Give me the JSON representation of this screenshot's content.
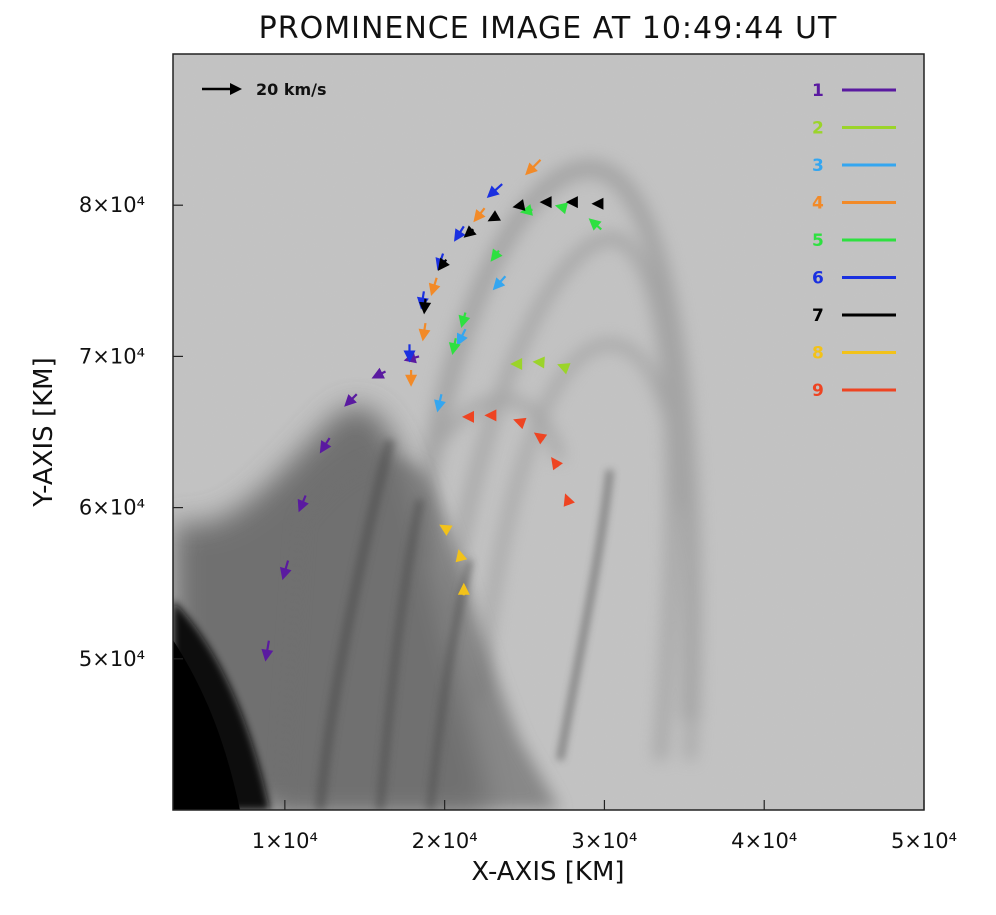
{
  "chart_data": {
    "type": "scatter",
    "title": "PROMINENCE IMAGE AT 10:49:44 UT",
    "xlabel": "X-AXIS [KM]",
    "ylabel": "Y-AXIS [KM]",
    "xlim": [
      3000,
      50000
    ],
    "ylim": [
      40000,
      90000
    ],
    "x_ticks": [
      {
        "value": 10000,
        "label": "1×10⁴"
      },
      {
        "value": 20000,
        "label": "2×10⁴"
      },
      {
        "value": 30000,
        "label": "3×10⁴"
      },
      {
        "value": 40000,
        "label": "4×10⁴"
      },
      {
        "value": 50000,
        "label": "5×10⁴"
      }
    ],
    "y_ticks": [
      {
        "value": 50000,
        "label": "5×10⁴"
      },
      {
        "value": 60000,
        "label": "6×10⁴"
      },
      {
        "value": 70000,
        "label": "7×10⁴"
      },
      {
        "value": 80000,
        "label": "8×10⁴"
      }
    ],
    "velocity_scale": {
      "label": "20 km/s"
    },
    "legend_position": "top-right",
    "background": "grayscale prominence image",
    "series": [
      {
        "name": "1",
        "color": "#5a1aa0",
        "points": [
          {
            "x": 9000,
            "y": 51200,
            "vx": -0.5,
            "vy": -3.0
          },
          {
            "x": 10200,
            "y": 56500,
            "vx": -0.8,
            "vy": -2.8
          },
          {
            "x": 11300,
            "y": 60800,
            "vx": -1.0,
            "vy": -2.4
          },
          {
            "x": 12800,
            "y": 64600,
            "vx": -1.4,
            "vy": -2.2
          },
          {
            "x": 14500,
            "y": 67500,
            "vx": -1.8,
            "vy": -1.8
          },
          {
            "x": 16300,
            "y": 69000,
            "vx": -2.0,
            "vy": -1.0
          },
          {
            "x": 18400,
            "y": 70000,
            "vx": -2.2,
            "vy": -0.6
          }
        ]
      },
      {
        "name": "2",
        "color": "#9bd42a",
        "points": [
          {
            "x": 24800,
            "y": 69500,
            "vx": -1.6,
            "vy": 0.0
          },
          {
            "x": 26200,
            "y": 69600,
            "vx": -1.6,
            "vy": 0.1
          },
          {
            "x": 27700,
            "y": 69200,
            "vx": -1.5,
            "vy": 0.6
          }
        ]
      },
      {
        "name": "3",
        "color": "#34a6f0",
        "points": [
          {
            "x": 19800,
            "y": 67500,
            "vx": -0.6,
            "vy": -2.6
          },
          {
            "x": 21300,
            "y": 71800,
            "vx": -1.2,
            "vy": -2.4
          },
          {
            "x": 23800,
            "y": 75300,
            "vx": -1.8,
            "vy": -2.0
          }
        ]
      },
      {
        "name": "4",
        "color": "#f28a28",
        "points": [
          {
            "x": 17900,
            "y": 69100,
            "vx": 0.0,
            "vy": -2.4
          },
          {
            "x": 18800,
            "y": 72200,
            "vx": -0.4,
            "vy": -2.6
          },
          {
            "x": 19500,
            "y": 75200,
            "vx": -0.8,
            "vy": -2.6
          },
          {
            "x": 22500,
            "y": 79800,
            "vx": -1.6,
            "vy": -2.0
          },
          {
            "x": 26000,
            "y": 83000,
            "vx": -2.2,
            "vy": -2.2
          }
        ]
      },
      {
        "name": "5",
        "color": "#2ee040",
        "points": [
          {
            "x": 20700,
            "y": 71200,
            "vx": -0.5,
            "vy": -2.4
          },
          {
            "x": 21300,
            "y": 72900,
            "vx": -0.6,
            "vy": -2.2
          },
          {
            "x": 23400,
            "y": 77000,
            "vx": -1.2,
            "vy": -1.6
          },
          {
            "x": 25500,
            "y": 79700,
            "vx": -1.8,
            "vy": -0.4
          },
          {
            "x": 27600,
            "y": 79800,
            "vx": -1.6,
            "vy": 0.4
          },
          {
            "x": 29800,
            "y": 78400,
            "vx": -1.8,
            "vy": 1.6
          }
        ]
      },
      {
        "name": "6",
        "color": "#1a30e0",
        "points": [
          {
            "x": 17800,
            "y": 70800,
            "vx": 0.0,
            "vy": -2.6
          },
          {
            "x": 18700,
            "y": 74300,
            "vx": -0.4,
            "vy": -2.6
          },
          {
            "x": 19900,
            "y": 76800,
            "vx": -0.8,
            "vy": -2.4
          },
          {
            "x": 21200,
            "y": 78600,
            "vx": -1.4,
            "vy": -2.2
          },
          {
            "x": 23600,
            "y": 81400,
            "vx": -2.2,
            "vy": -2.0
          }
        ]
      },
      {
        "name": "7",
        "color": "#000000",
        "points": [
          {
            "x": 18800,
            "y": 73800,
            "vx": -0.2,
            "vy": -2.2
          },
          {
            "x": 20100,
            "y": 76400,
            "vx": -1.2,
            "vy": -1.6
          },
          {
            "x": 21800,
            "y": 78400,
            "vx": -1.4,
            "vy": -1.2
          },
          {
            "x": 23300,
            "y": 79300,
            "vx": -1.4,
            "vy": -0.8
          },
          {
            "x": 24900,
            "y": 80000,
            "vx": -1.5,
            "vy": -0.3
          },
          {
            "x": 26600,
            "y": 80200,
            "vx": -1.5,
            "vy": 0.0
          },
          {
            "x": 28200,
            "y": 80200,
            "vx": -1.4,
            "vy": 0.0
          },
          {
            "x": 29800,
            "y": 80100,
            "vx": -1.4,
            "vy": 0.0
          }
        ]
      },
      {
        "name": "8",
        "color": "#f2c21a",
        "points": [
          {
            "x": 20100,
            "y": 58600,
            "vx": -1.0,
            "vy": 0.6
          },
          {
            "x": 21000,
            "y": 56700,
            "vx": -0.3,
            "vy": 1.2
          },
          {
            "x": 21200,
            "y": 54200,
            "vx": 0.0,
            "vy": 1.8
          }
        ]
      },
      {
        "name": "9",
        "color": "#ee4422",
        "points": [
          {
            "x": 21700,
            "y": 66000,
            "vx": -1.4,
            "vy": 0.0
          },
          {
            "x": 23100,
            "y": 66100,
            "vx": -1.4,
            "vy": 0.0
          },
          {
            "x": 24900,
            "y": 65600,
            "vx": -1.4,
            "vy": 0.5
          },
          {
            "x": 26200,
            "y": 64500,
            "vx": -1.4,
            "vy": 1.0
          },
          {
            "x": 27100,
            "y": 62700,
            "vx": -1.0,
            "vy": 1.4
          },
          {
            "x": 27800,
            "y": 60200,
            "vx": -0.6,
            "vy": 1.6
          }
        ]
      }
    ]
  }
}
